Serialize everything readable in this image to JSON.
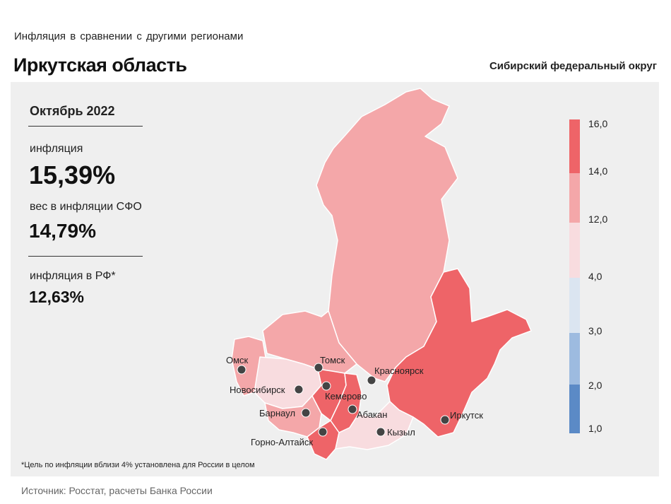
{
  "header": {
    "subtitle": "Инфляция в сравнении с другими регионами",
    "title": "Иркутская область",
    "district": "Сибирский федеральный округ"
  },
  "stats": {
    "period": "Октябрь 2022",
    "inflation_label": "инфляция",
    "inflation_value": "15,39%",
    "weight_label": "вес в инфляции СФО",
    "weight_value": "14,79%",
    "rf_label": "инфляция в РФ*",
    "rf_value": "12,63%"
  },
  "legend": {
    "labels": [
      "16,0",
      "14,0",
      "12,0",
      "4,0",
      "3,0",
      "2,0",
      "1,0"
    ],
    "colors": {
      "band_14_16": "#ee6468",
      "band_12_14": "#f4a7a9",
      "band_4_12": "#f8dcdf",
      "band_3_4": "#dbe5f1",
      "band_2_3": "#9dbbe0",
      "band_1_2": "#5b8ac6"
    }
  },
  "cities": {
    "omsk": "Омск",
    "tomsk": "Томск",
    "krasnoyarsk": "Красноярск",
    "novosibirsk": "Новосибирск",
    "kemerovo": "Кемерово",
    "abakan": "Абакан",
    "irkutsk": "Иркутск",
    "barnaul": "Барнаул",
    "kyzyl": "Кызыл",
    "gorno_altaysk": "Горно-Алтайск"
  },
  "footnote": "*Цель по инфляции вблизи 4% установлена для России в целом",
  "source": "Источник: Росстат, расчеты Банка России"
}
